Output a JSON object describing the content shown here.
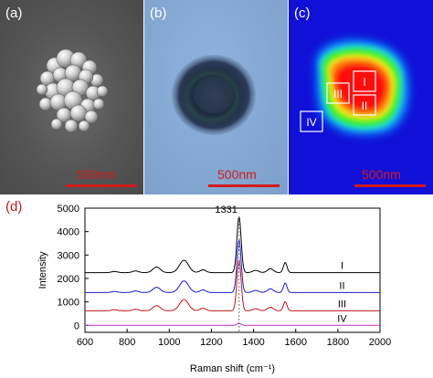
{
  "panels": {
    "a": {
      "label": "(a)",
      "scale": "500nm"
    },
    "b": {
      "label": "(b)",
      "scale": "500nm"
    },
    "c": {
      "label": "(c)",
      "scale": "500nm",
      "regions": [
        "I",
        "II",
        "III",
        "IV"
      ]
    },
    "d": {
      "label": "(d)"
    }
  },
  "colors": {
    "scalebar": "#d21a1a",
    "series_I": "#000000",
    "series_II": "#1a1ad0",
    "series_III": "#c01818",
    "series_IV": "#c030c0"
  },
  "chart_data": {
    "type": "line",
    "xlabel": "Raman shift (cm⁻¹)",
    "ylabel": "Intensity",
    "xlim": [
      600,
      2000
    ],
    "ylim": [
      -300,
      5000
    ],
    "xticks": [
      600,
      800,
      1000,
      1200,
      1400,
      1600,
      1800,
      2000
    ],
    "yticks": [
      0,
      1000,
      2000,
      3000,
      4000,
      5000
    ],
    "peak_annotation": "1331",
    "peak_x": 1331,
    "series": [
      {
        "name": "I",
        "baseline": 2250,
        "peak": 4650
      },
      {
        "name": "II",
        "baseline": 1400,
        "peak": 3650
      },
      {
        "name": "III",
        "baseline": 620,
        "peak": 2800
      },
      {
        "name": "IV",
        "baseline": 0,
        "peak": 80
      }
    ]
  }
}
